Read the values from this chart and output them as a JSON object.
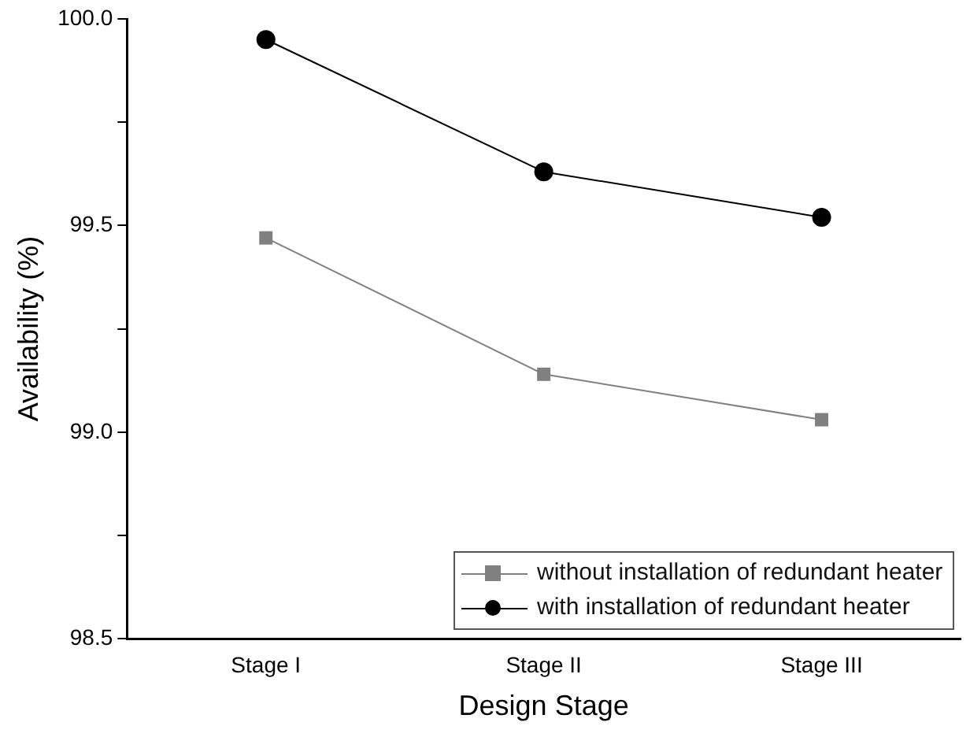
{
  "chart_data": {
    "type": "line",
    "xlabel": "Design Stage",
    "ylabel": "Availability (%)",
    "categories": [
      "Stage I",
      "Stage II",
      "Stage III"
    ],
    "series": [
      {
        "name": "without installation of redundant heater",
        "color": "#808080",
        "marker": "square",
        "values": [
          99.47,
          99.14,
          99.03
        ]
      },
      {
        "name": "with installation of redundant heater",
        "color": "#000000",
        "marker": "circle",
        "values": [
          99.95,
          99.63,
          99.52
        ]
      }
    ],
    "ylim": [
      98.5,
      100.0
    ],
    "yticks": [
      {
        "value": 98.5,
        "label": "98.5"
      },
      {
        "value": 98.75,
        "label": null
      },
      {
        "value": 99.0,
        "label": "99.0"
      },
      {
        "value": 99.25,
        "label": null
      },
      {
        "value": 99.5,
        "label": "99.5"
      },
      {
        "value": 99.75,
        "label": null
      },
      {
        "value": 100.0,
        "label": "100.0"
      }
    ],
    "grid": false,
    "legend": "bottom right"
  }
}
